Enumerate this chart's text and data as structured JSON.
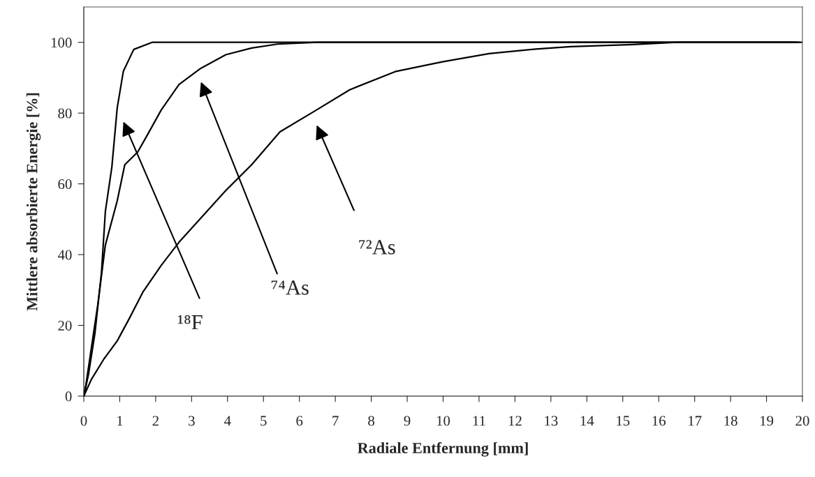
{
  "chart_data": {
    "type": "line",
    "xlabel": "Radiale Entfernung [mm]",
    "ylabel": "Mittlere absorbierte Energie [%]",
    "xlim": [
      0,
      20
    ],
    "ylim": [
      0,
      110
    ],
    "xticks": [
      0,
      1,
      2,
      3,
      4,
      5,
      6,
      7,
      8,
      9,
      10,
      11,
      12,
      13,
      14,
      15,
      16,
      17,
      18,
      19,
      20
    ],
    "yticks": [
      0,
      20,
      40,
      60,
      80,
      100
    ],
    "grid": false,
    "legend": false,
    "marker": "none",
    "line_style": "solid",
    "series": [
      {
        "color": "#000000",
        "x": [
          0,
          0.13,
          0.31,
          0.49,
          0.6,
          0.78,
          0.93,
          1.1,
          1.39,
          1.9,
          20
        ],
        "values": [
          0,
          6.1,
          17.8,
          34.7,
          52.2,
          64.7,
          81.5,
          91.8,
          98,
          100,
          100
        ]
      },
      {
        "color": "#000000",
        "x": [
          0,
          0.05,
          0.39,
          0.6,
          0.93,
          1.14,
          1.5,
          1.79,
          2.15,
          2.65,
          3.23,
          3.95,
          4.67,
          5.39,
          6.5,
          19.9
        ],
        "values": [
          0,
          2.6,
          25.9,
          42.7,
          55.2,
          65.4,
          69,
          74.2,
          80.8,
          88.1,
          92.5,
          96.5,
          98.4,
          99.5,
          100,
          100
        ]
      },
      {
        "color": "#000000",
        "x": [
          0,
          0.21,
          0.56,
          0.93,
          1.28,
          1.65,
          2.15,
          2.65,
          3.23,
          3.95,
          4.67,
          5.46,
          6.43,
          7.4,
          8.69,
          9.98,
          11.28,
          12.58,
          13.55,
          15.29,
          16.5,
          19.8
        ],
        "values": [
          0,
          4.7,
          10.5,
          15.6,
          22.2,
          29.5,
          36.9,
          43.5,
          50,
          58.1,
          65.4,
          74.7,
          80.6,
          86.6,
          91.8,
          94.5,
          96.8,
          98.1,
          98.8,
          99.4,
          100,
          100
        ]
      }
    ],
    "annotations": [
      "¹⁸F",
      "⁷⁴As",
      "⁷²As"
    ]
  }
}
